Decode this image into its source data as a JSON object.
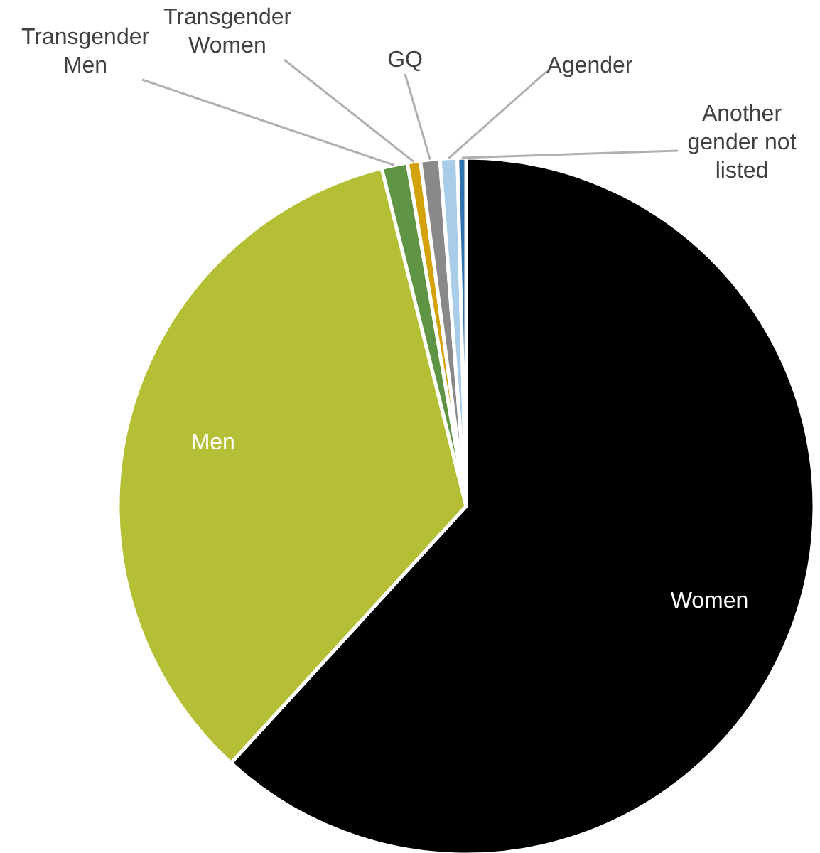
{
  "chart_data": {
    "type": "pie",
    "categories": [
      "Women",
      "Men",
      "Transgender Men",
      "Transgender Women",
      "GQ",
      "Agender",
      "Another gender not listed"
    ],
    "values": [
      61.8,
      34.3,
      1.2,
      0.6,
      0.9,
      0.8,
      0.4
    ],
    "colors": [
      "#000000",
      "#b5bf35",
      "#5e9444",
      "#d4a20a",
      "#8a8888",
      "#a9cde9",
      "#2f72ae"
    ]
  }
}
